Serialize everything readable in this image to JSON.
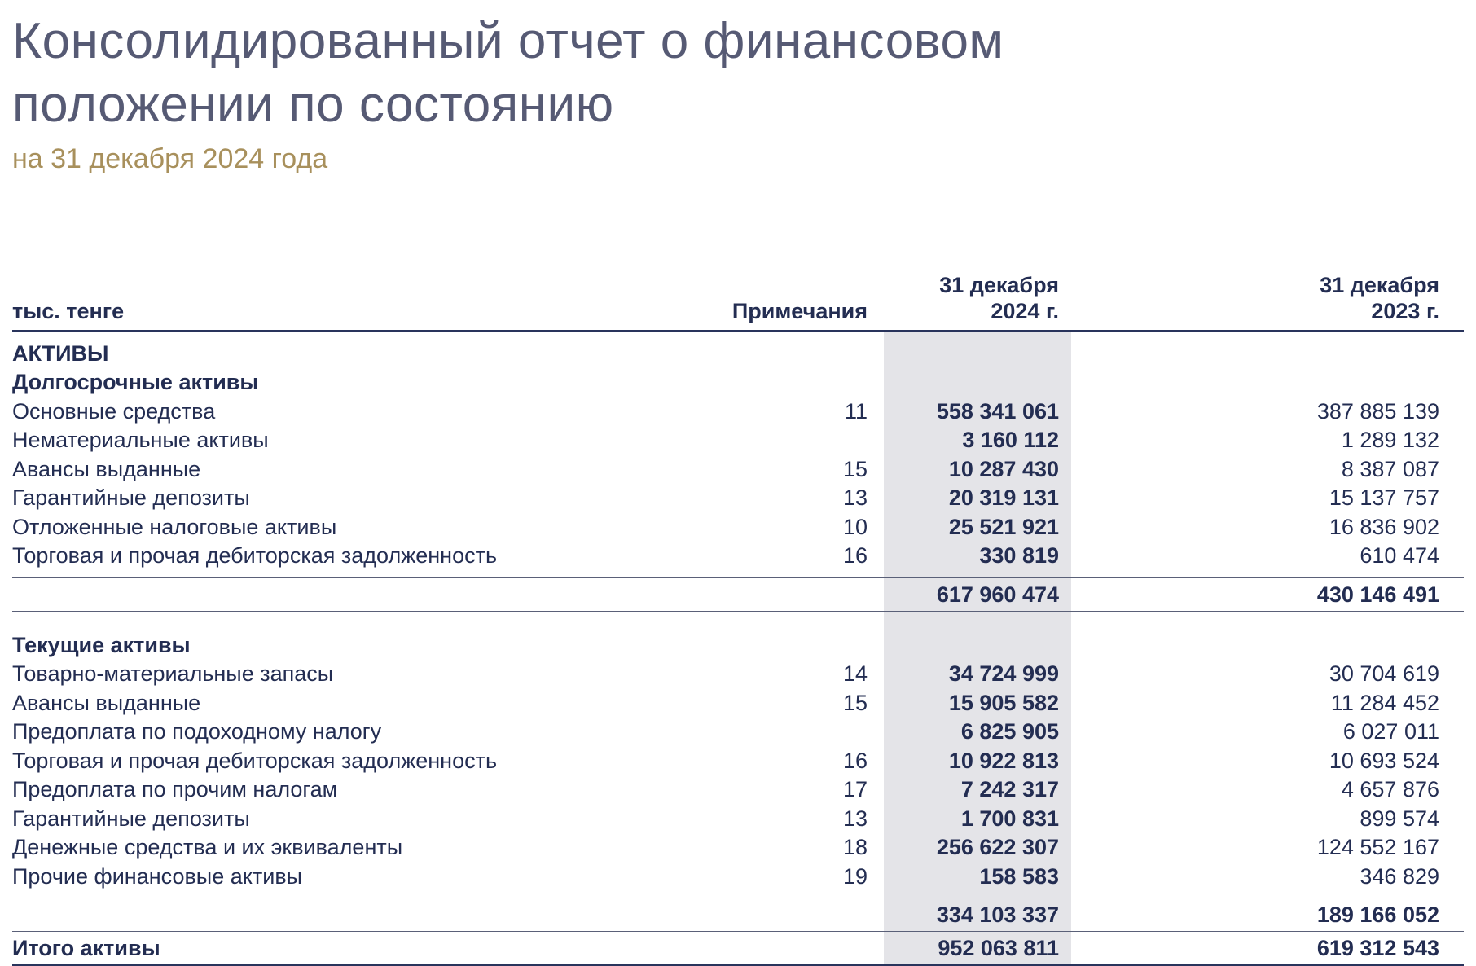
{
  "page": {
    "title_line1": "Консолидированный отчет о финансовом",
    "title_line2": "положении по состоянию",
    "subtitle": "на 31 декабря 2024 года"
  },
  "table": {
    "unit_label": "тыс. тенге",
    "columns": {
      "notes": "Примечания",
      "y2024_line1": "31 декабря",
      "y2024_line2": "2024 г.",
      "y2023_line1": "31 декабря",
      "y2023_line2": "2023 г."
    },
    "rows": [
      {
        "type": "section",
        "label": "АКТИВЫ"
      },
      {
        "type": "section",
        "label": "Долгосрочные активы"
      },
      {
        "type": "item",
        "label": "Основные средства",
        "note": "11",
        "v2024": "558 341 061",
        "v2023": "387 885 139"
      },
      {
        "type": "item",
        "label": "Нематериальные активы",
        "note": "",
        "v2024": "3 160 112",
        "v2023": "1 289 132"
      },
      {
        "type": "item",
        "label": "Авансы выданные",
        "note": "15",
        "v2024": "10 287 430",
        "v2023": "8 387 087"
      },
      {
        "type": "item",
        "label": "Гарантийные депозиты",
        "note": "13",
        "v2024": "20 319 131",
        "v2023": "15 137 757"
      },
      {
        "type": "item",
        "label": "Отложенные налоговые активы",
        "note": "10",
        "v2024": "25 521 921",
        "v2023": "16 836 902"
      },
      {
        "type": "item",
        "label": "Торговая и прочая дебиторская задолженность",
        "note": "16",
        "v2024": "330 819",
        "v2023": "610 474"
      },
      {
        "type": "subtotal",
        "label": "",
        "note": "",
        "v2024": "617 960 474",
        "v2023": "430 146 491"
      },
      {
        "type": "section",
        "label": "Текущие активы",
        "spaced": true
      },
      {
        "type": "item",
        "label": "Товарно-материальные запасы",
        "note": "14",
        "v2024": "34 724 999",
        "v2023": "30 704 619"
      },
      {
        "type": "item",
        "label": "Авансы выданные",
        "note": "15",
        "v2024": "15 905 582",
        "v2023": "11 284 452"
      },
      {
        "type": "item",
        "label": "Предоплата по подоходному налогу",
        "note": "",
        "v2024": "6 825 905",
        "v2023": "6 027 011"
      },
      {
        "type": "item",
        "label": "Торговая и прочая дебиторская задолженность",
        "note": "16",
        "v2024": "10 922 813",
        "v2023": "10 693 524"
      },
      {
        "type": "item",
        "label": "Предоплата по прочим налогам",
        "note": "17",
        "v2024": "7 242 317",
        "v2023": "4 657 876"
      },
      {
        "type": "item",
        "label": "Гарантийные депозиты",
        "note": "13",
        "v2024": "1 700 831",
        "v2023": "899 574"
      },
      {
        "type": "item",
        "label": "Денежные средства и их эквиваленты",
        "note": "18",
        "v2024": "256 622 307",
        "v2023": "124 552 167"
      },
      {
        "type": "item",
        "label": "Прочие финансовые активы",
        "note": "19",
        "v2024": "158 583",
        "v2023": "346 829"
      },
      {
        "type": "subtotal",
        "label": "",
        "note": "",
        "v2024": "334 103 337",
        "v2023": "189 166 052"
      },
      {
        "type": "total",
        "label": "Итого активы",
        "note": "",
        "v2024": "952 063 811",
        "v2023": "619 312 543"
      }
    ]
  },
  "colors": {
    "title": "#565a74",
    "subtitle_gold": "#a8905c",
    "table_navy": "#232d52",
    "rule_navy": "#29345c",
    "highlight_band": "#e4e4e8"
  }
}
